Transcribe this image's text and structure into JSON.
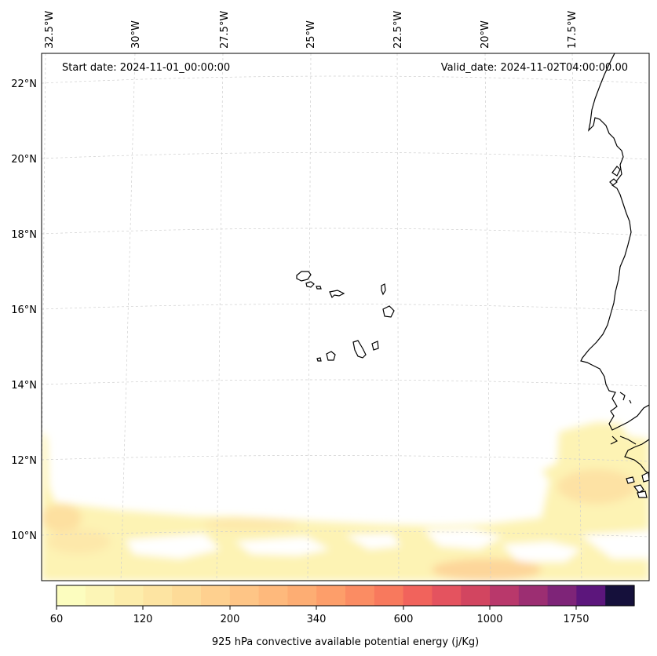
{
  "header": {
    "start_date": "Start date: 2024-11-01_00:00:00",
    "valid_date": "Valid_date: 2024-11-02T04:00:00.00"
  },
  "lon_labels": [
    "32.5°W",
    "30°W",
    "27.5°W",
    "25°W",
    "22.5°W",
    "20°W",
    "17.5°W"
  ],
  "lat_labels": [
    "22°N",
    "20°N",
    "18°N",
    "16°N",
    "14°N",
    "12°N",
    "10°N"
  ],
  "colorbar": {
    "label": "925 hPa convective available potential energy (j/Kg)",
    "ticks": [
      "60",
      "120",
      "200",
      "340",
      "600",
      "1000",
      "1750"
    ],
    "colors": [
      "#fcfdbf",
      "#fcf5b6",
      "#fdedab",
      "#fde4a2",
      "#fddb98",
      "#fed08f",
      "#fec586",
      "#feb97c",
      "#fdad73",
      "#fd9e6a",
      "#fb8c63",
      "#f8795d",
      "#f1635c",
      "#e4535f",
      "#d24560",
      "#b9386b",
      "#9c2e72",
      "#7e2478",
      "#5c167c",
      "#15103b"
    ]
  }
}
